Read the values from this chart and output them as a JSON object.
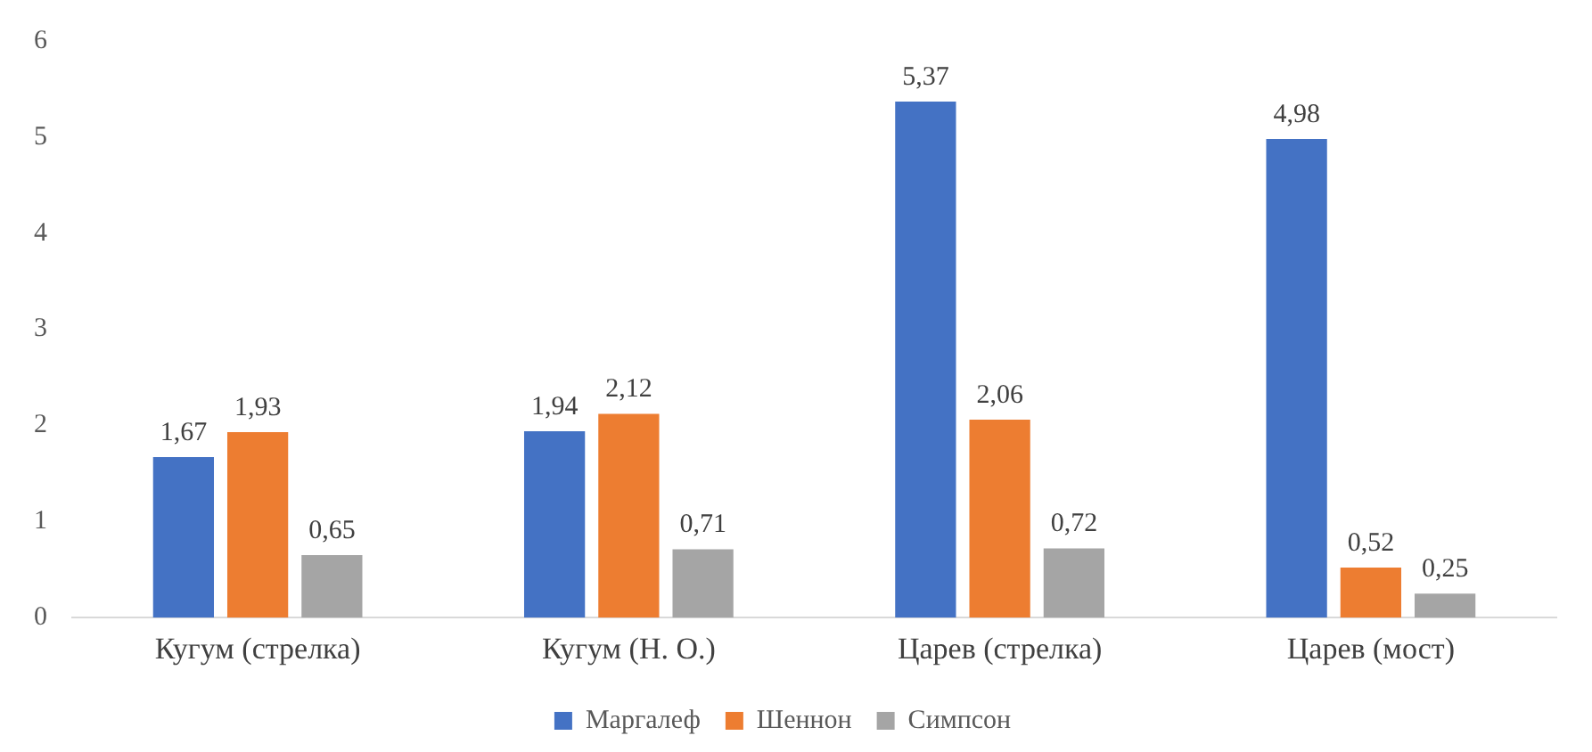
{
  "chart_data": {
    "type": "bar",
    "categories": [
      "Кугум (стрелка)",
      "Кугум (Н. О.)",
      "Царев (стрелка)",
      "Царев (мост)"
    ],
    "series": [
      {
        "name": "Маргалеф",
        "color": "#4472c4",
        "values": [
          1.67,
          1.94,
          5.37,
          4.98
        ],
        "value_labels": [
          "1,67",
          "1,94",
          "5,37",
          "4,98"
        ]
      },
      {
        "name": "Шеннон",
        "color": "#ed7d31",
        "values": [
          1.93,
          2.12,
          2.06,
          0.52
        ],
        "value_labels": [
          "1,93",
          "2,12",
          "2,06",
          "0,52"
        ]
      },
      {
        "name": "Симпсон",
        "color": "#a5a5a5",
        "values": [
          0.65,
          0.71,
          0.72,
          0.25
        ],
        "value_labels": [
          "0,65",
          "0,71",
          "0,72",
          "0,25"
        ]
      }
    ],
    "ylim": [
      0,
      6
    ],
    "yticks": [
      0,
      1,
      2,
      3,
      4,
      5,
      6
    ],
    "grid": false,
    "legend": "bottom"
  }
}
